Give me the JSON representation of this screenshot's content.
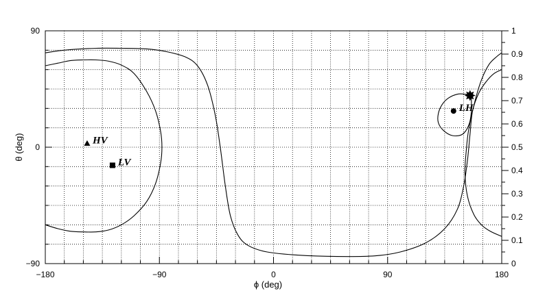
{
  "chart_data": {
    "type": "line",
    "xlabel": "ϕ (deg)",
    "ylabel": "θ (deg)",
    "xlim": [
      -180,
      180
    ],
    "ylim": [
      -90,
      90
    ],
    "y2lim": [
      0,
      1
    ],
    "x_ticks": [
      "−180",
      "−90",
      "0",
      "90",
      "180"
    ],
    "y_ticks": [
      "−90",
      "0",
      "90"
    ],
    "y2_ticks": [
      "0",
      "0.1",
      "0.2",
      "0.3",
      "0.4",
      "0.5",
      "0.6",
      "0.7",
      "0.8",
      "0.9",
      "1"
    ],
    "grid": true,
    "series": [
      {
        "points": [
          [
            -180,
            -60
          ],
          [
            -170,
            -63
          ],
          [
            -160,
            -65
          ],
          [
            -150,
            -65.5
          ],
          [
            -140,
            -65.5
          ],
          [
            -130,
            -64
          ],
          [
            -120,
            -60
          ],
          [
            -110,
            -53
          ],
          [
            -100,
            -42
          ],
          [
            -93,
            -28
          ],
          [
            -89,
            -12
          ],
          [
            -88,
            0
          ],
          [
            -89,
            12
          ],
          [
            -93,
            28
          ],
          [
            -100,
            43
          ],
          [
            -110,
            57
          ],
          [
            -120,
            63.5
          ],
          [
            -130,
            66.5
          ],
          [
            -140,
            67.5
          ],
          [
            -150,
            67.5
          ],
          [
            -160,
            67
          ],
          [
            -170,
            65
          ],
          [
            -180,
            63
          ]
        ]
      },
      {
        "points": [
          [
            -180,
            73
          ],
          [
            -170,
            74.5
          ],
          [
            -160,
            75.5
          ],
          [
            -140,
            76.5
          ],
          [
            -120,
            76.5
          ],
          [
            -100,
            76
          ],
          [
            -85,
            74
          ],
          [
            -70,
            70
          ],
          [
            -60,
            63
          ],
          [
            -52,
            48
          ],
          [
            -46,
            25
          ],
          [
            -42,
            0
          ],
          [
            -38,
            -30
          ],
          [
            -34,
            -53
          ],
          [
            -28,
            -68
          ],
          [
            -20,
            -76
          ],
          [
            -5,
            -81
          ],
          [
            20,
            -83.5
          ],
          [
            50,
            -84.5
          ],
          [
            80,
            -84
          ],
          [
            100,
            -81
          ],
          [
            120,
            -74
          ],
          [
            135,
            -63
          ],
          [
            145,
            -48
          ],
          [
            150,
            -30
          ],
          [
            153,
            -10
          ],
          [
            155,
            10
          ],
          [
            157,
            28
          ],
          [
            162,
            42
          ],
          [
            168,
            51
          ],
          [
            174,
            57
          ],
          [
            180,
            60
          ]
        ]
      },
      {
        "points": [
          [
            180,
            73
          ],
          [
            176,
            70
          ],
          [
            170,
            64
          ],
          [
            164,
            52
          ],
          [
            159,
            36
          ],
          [
            154,
            14
          ],
          [
            152,
            -3
          ],
          [
            151,
            -20
          ],
          [
            153,
            -38
          ],
          [
            158,
            -52
          ],
          [
            164,
            -60
          ],
          [
            171,
            -65
          ],
          [
            180,
            -69
          ]
        ]
      },
      {
        "points": [
          [
            156,
            40
          ],
          [
            151,
            41
          ],
          [
            145,
            41
          ],
          [
            138,
            38
          ],
          [
            133,
            33
          ],
          [
            130,
            26
          ],
          [
            130,
            19
          ],
          [
            134,
            13
          ],
          [
            141,
            9
          ],
          [
            149,
            10
          ],
          [
            154,
            17
          ],
          [
            156,
            27
          ],
          [
            156,
            40
          ]
        ]
      }
    ],
    "markers": [
      {
        "label": "HV",
        "shape": "triangle",
        "x": -147,
        "y": 3
      },
      {
        "label": "LV",
        "shape": "square",
        "x": -127,
        "y": -14
      },
      {
        "label": "LH",
        "shape": "circle",
        "x": 142,
        "y": 28
      },
      {
        "label": "",
        "shape": "star",
        "x": 155,
        "y": 40
      }
    ]
  }
}
